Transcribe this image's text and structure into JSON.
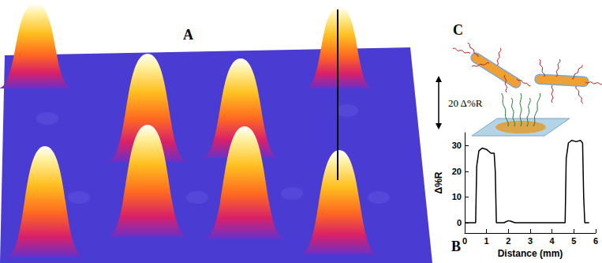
{
  "chart_data": {
    "type": "line",
    "x": [
      0,
      0.5,
      0.55,
      0.65,
      0.8,
      1.0,
      1.2,
      1.35,
      1.4,
      1.45,
      1.8,
      2.0,
      2.1,
      2.3,
      3,
      4,
      4.6,
      4.65,
      4.75,
      4.9,
      5.1,
      5.3,
      5.4,
      5.45,
      5.5,
      5.7
    ],
    "values": [
      0,
      0,
      22,
      28,
      29,
      28.5,
      27,
      27,
      20,
      0,
      0,
      0.8,
      0.6,
      0,
      0,
      0,
      0,
      25,
      31,
      32,
      31.5,
      32,
      31,
      10,
      0,
      0
    ],
    "x_label": "Distance (mm)",
    "y_label": "Δ%R",
    "color": "#000000",
    "xlim": [
      0,
      6
    ],
    "xticks": [
      0,
      1,
      2,
      3,
      4,
      5,
      6
    ],
    "ylim": [
      -4,
      35
    ],
    "yticks": [
      0,
      10,
      20,
      30
    ],
    "grid": false
  },
  "panels": {
    "A": {
      "label": "A",
      "scale_bar": "20 Δ%R"
    },
    "B": {
      "label": "B"
    },
    "C": {
      "label": "C"
    }
  }
}
